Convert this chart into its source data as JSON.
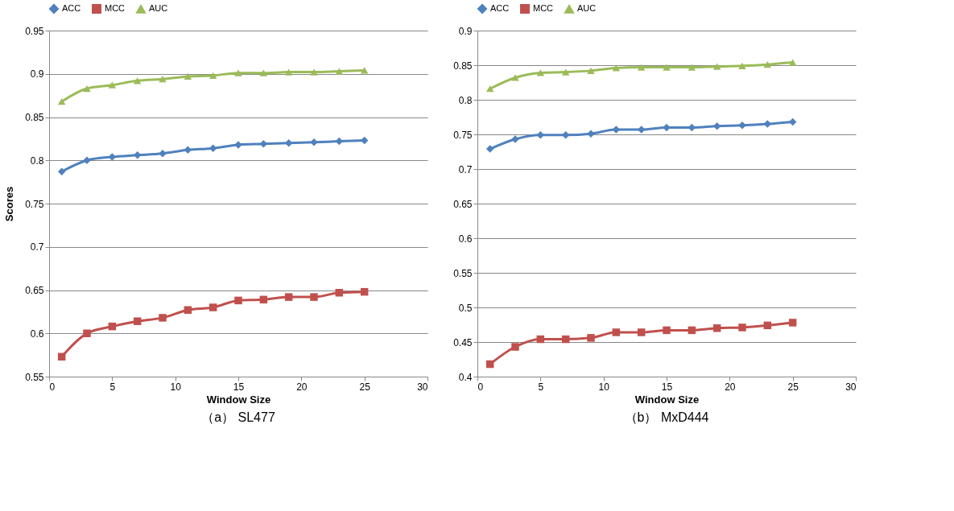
{
  "chart_data": [
    {
      "type": "line",
      "ylabel": "Scores",
      "xlabel": "Window Size",
      "annotations": [
        "（a） SL477"
      ],
      "x": [
        1,
        3,
        5,
        7,
        9,
        11,
        13,
        15,
        17,
        19,
        21,
        23,
        25
      ],
      "xlim": [
        0,
        30
      ],
      "xticks": [
        0,
        5,
        10,
        15,
        20,
        25,
        30
      ],
      "ylim": [
        0.55,
        0.95
      ],
      "yticks": [
        0.55,
        0.6,
        0.65,
        0.7,
        0.75,
        0.8,
        0.85,
        0.9,
        0.95
      ],
      "grid": "y",
      "legend": "top",
      "series": [
        {
          "name": "ACC",
          "color": "#4f81bd",
          "marker": "diamond",
          "values": [
            0.787,
            0.8,
            0.804,
            0.806,
            0.808,
            0.812,
            0.814,
            0.818,
            0.819,
            0.82,
            0.821,
            0.822,
            0.823
          ]
        },
        {
          "name": "MCC",
          "color": "#c0504d",
          "marker": "square",
          "values": [
            0.573,
            0.6,
            0.608,
            0.614,
            0.618,
            0.627,
            0.63,
            0.638,
            0.639,
            0.642,
            0.642,
            0.647,
            0.648
          ]
        },
        {
          "name": "AUC",
          "color": "#9bbb59",
          "marker": "triangle",
          "values": [
            0.868,
            0.883,
            0.887,
            0.892,
            0.894,
            0.897,
            0.898,
            0.901,
            0.901,
            0.902,
            0.902,
            0.903,
            0.904
          ]
        }
      ]
    },
    {
      "type": "line",
      "xlabel": "Window Size",
      "annotations": [
        "（b） MxD444"
      ],
      "x": [
        1,
        3,
        5,
        7,
        9,
        11,
        13,
        15,
        17,
        19,
        21,
        23,
        25
      ],
      "xlim": [
        0,
        30
      ],
      "xticks": [
        0,
        5,
        10,
        15,
        20,
        25,
        30
      ],
      "ylim": [
        0.4,
        0.9
      ],
      "yticks": [
        0.4,
        0.45,
        0.5,
        0.55,
        0.6,
        0.65,
        0.7,
        0.75,
        0.8,
        0.85,
        0.9
      ],
      "grid": "y",
      "legend": "top",
      "series": [
        {
          "name": "ACC",
          "color": "#4f81bd",
          "marker": "diamond",
          "values": [
            0.729,
            0.743,
            0.749,
            0.749,
            0.751,
            0.757,
            0.757,
            0.76,
            0.76,
            0.762,
            0.763,
            0.765,
            0.768
          ]
        },
        {
          "name": "MCC",
          "color": "#c0504d",
          "marker": "square",
          "values": [
            0.418,
            0.443,
            0.454,
            0.454,
            0.456,
            0.464,
            0.464,
            0.467,
            0.467,
            0.47,
            0.471,
            0.474,
            0.478
          ]
        },
        {
          "name": "AUC",
          "color": "#9bbb59",
          "marker": "triangle",
          "values": [
            0.816,
            0.832,
            0.839,
            0.84,
            0.842,
            0.846,
            0.847,
            0.847,
            0.847,
            0.848,
            0.849,
            0.851,
            0.854
          ]
        }
      ]
    }
  ]
}
